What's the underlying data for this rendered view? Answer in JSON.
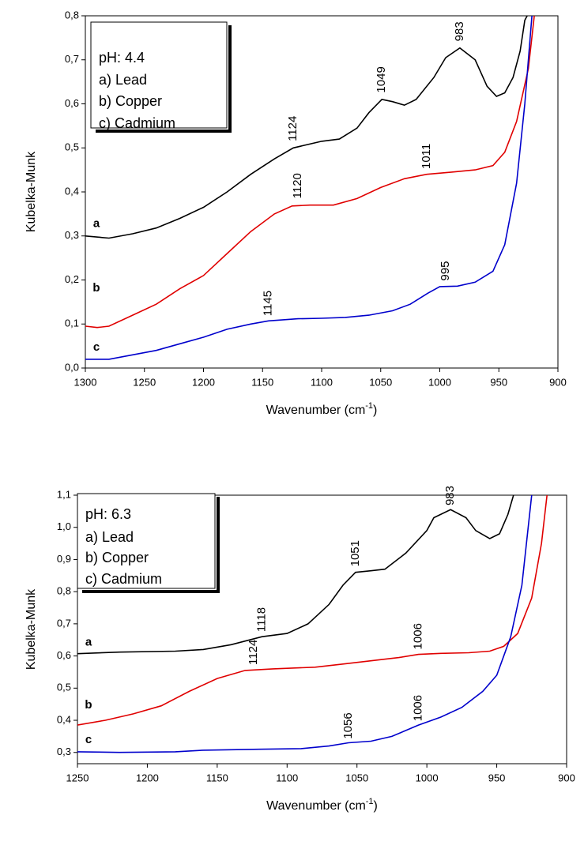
{
  "chart_data": [
    {
      "type": "line",
      "xlabel": [
        "Wavenumber (cm",
        "-1",
        ")"
      ],
      "ylabel": "Kubelka-Munk",
      "xlim": [
        1300,
        900
      ],
      "xticks": [
        1300,
        1250,
        1200,
        1150,
        1100,
        1050,
        1000,
        950,
        900
      ],
      "ylim": [
        0,
        0.8
      ],
      "yticks": [
        {
          "value": 0,
          "label": "0,0"
        },
        {
          "value": 0.1,
          "label": "0,1"
        },
        {
          "value": 0.2,
          "label": "0,2"
        },
        {
          "value": 0.3,
          "label": "0,3"
        },
        {
          "value": 0.4,
          "label": "0,4"
        },
        {
          "value": 0.5,
          "label": "0,5"
        },
        {
          "value": 0.6,
          "label": "0,6"
        },
        {
          "value": 0.7,
          "label": "0,7"
        },
        {
          "value": 0.8,
          "label": "0,8"
        }
      ],
      "legend": [
        "pH: 4.4",
        "a)  Lead",
        "b)  Copper",
        "c)  Cadmium"
      ],
      "annotations": [
        "1124",
        "1049",
        "983",
        "1120",
        "1011",
        "995",
        "1145"
      ],
      "series": [
        {
          "name": "a",
          "color": "#000000",
          "x": [
            1300,
            1280,
            1260,
            1240,
            1220,
            1200,
            1180,
            1160,
            1140,
            1124,
            1100,
            1085,
            1070,
            1060,
            1049,
            1040,
            1030,
            1020,
            1005,
            995,
            983,
            970,
            960,
            952,
            945,
            938,
            932,
            928,
            926
          ],
          "values": [
            0.3,
            0.295,
            0.305,
            0.318,
            0.34,
            0.365,
            0.4,
            0.44,
            0.475,
            0.5,
            0.515,
            0.52,
            0.545,
            0.58,
            0.61,
            0.605,
            0.597,
            0.61,
            0.66,
            0.705,
            0.727,
            0.7,
            0.64,
            0.617,
            0.625,
            0.66,
            0.72,
            0.79,
            0.8
          ]
        },
        {
          "name": "b",
          "color": "#e00000",
          "x": [
            1300,
            1290,
            1280,
            1260,
            1240,
            1220,
            1200,
            1180,
            1160,
            1140,
            1125,
            1110,
            1090,
            1070,
            1050,
            1030,
            1011,
            990,
            970,
            955,
            945,
            935,
            925,
            920
          ],
          "values": [
            0.095,
            0.092,
            0.095,
            0.12,
            0.145,
            0.18,
            0.21,
            0.26,
            0.31,
            0.35,
            0.368,
            0.37,
            0.37,
            0.385,
            0.41,
            0.43,
            0.44,
            0.445,
            0.45,
            0.46,
            0.49,
            0.56,
            0.68,
            0.8
          ]
        },
        {
          "name": "c",
          "color": "#0000cc",
          "x": [
            1300,
            1280,
            1260,
            1240,
            1220,
            1200,
            1180,
            1160,
            1145,
            1120,
            1100,
            1080,
            1060,
            1040,
            1025,
            1010,
            1000,
            985,
            970,
            955,
            945,
            935,
            928,
            922
          ],
          "values": [
            0.02,
            0.02,
            0.03,
            0.04,
            0.055,
            0.07,
            0.088,
            0.1,
            0.107,
            0.112,
            0.113,
            0.115,
            0.12,
            0.13,
            0.145,
            0.17,
            0.185,
            0.186,
            0.195,
            0.22,
            0.28,
            0.42,
            0.6,
            0.8
          ]
        }
      ]
    },
    {
      "type": "line",
      "xlabel": [
        "Wavenumber (cm",
        "-1",
        ")"
      ],
      "ylabel": "Kubelka-Munk",
      "xlim": [
        1250,
        900
      ],
      "xticks": [
        1250,
        1200,
        1150,
        1100,
        1050,
        1000,
        950,
        900
      ],
      "ylim": [
        0.265,
        1.1
      ],
      "yticks": [
        {
          "value": 0.3,
          "label": "0,3"
        },
        {
          "value": 0.4,
          "label": "0,4"
        },
        {
          "value": 0.5,
          "label": "0,5"
        },
        {
          "value": 0.6,
          "label": "0,6"
        },
        {
          "value": 0.7,
          "label": "0,7"
        },
        {
          "value": 0.8,
          "label": "0,8"
        },
        {
          "value": 0.9,
          "label": "0,9"
        },
        {
          "value": 1.0,
          "label": "1,0"
        },
        {
          "value": 1.1,
          "label": "1,1"
        }
      ],
      "legend": [
        "pH: 6.3",
        "a) Lead",
        "b) Copper",
        "c) Cadmium"
      ],
      "annotations": [
        "983",
        "1051",
        "1118",
        "1006",
        "1124",
        "1056",
        "1006"
      ],
      "series": [
        {
          "name": "a",
          "color": "#000000",
          "x": [
            1250,
            1220,
            1180,
            1160,
            1140,
            1118,
            1100,
            1085,
            1070,
            1060,
            1051,
            1040,
            1030,
            1015,
            1000,
            995,
            983,
            972,
            965,
            955,
            948,
            942,
            938
          ],
          "values": [
            0.607,
            0.612,
            0.615,
            0.62,
            0.635,
            0.66,
            0.67,
            0.7,
            0.76,
            0.82,
            0.86,
            0.865,
            0.87,
            0.92,
            0.99,
            1.03,
            1.055,
            1.03,
            0.99,
            0.965,
            0.98,
            1.04,
            1.1
          ]
        },
        {
          "name": "b",
          "color": "#e00000",
          "x": [
            1250,
            1230,
            1210,
            1190,
            1170,
            1150,
            1130,
            1110,
            1080,
            1060,
            1040,
            1020,
            1006,
            990,
            970,
            955,
            945,
            935,
            925,
            918,
            914
          ],
          "values": [
            0.385,
            0.4,
            0.42,
            0.445,
            0.49,
            0.53,
            0.555,
            0.56,
            0.565,
            0.575,
            0.585,
            0.595,
            0.605,
            0.608,
            0.61,
            0.615,
            0.63,
            0.67,
            0.78,
            0.95,
            1.1
          ]
        },
        {
          "name": "c",
          "color": "#0000cc",
          "x": [
            1250,
            1220,
            1180,
            1160,
            1120,
            1090,
            1070,
            1056,
            1040,
            1025,
            1006,
            990,
            975,
            960,
            950,
            940,
            932,
            925
          ],
          "values": [
            0.302,
            0.3,
            0.302,
            0.307,
            0.31,
            0.312,
            0.32,
            0.33,
            0.335,
            0.35,
            0.385,
            0.41,
            0.44,
            0.49,
            0.54,
            0.66,
            0.82,
            1.1
          ]
        }
      ]
    }
  ]
}
